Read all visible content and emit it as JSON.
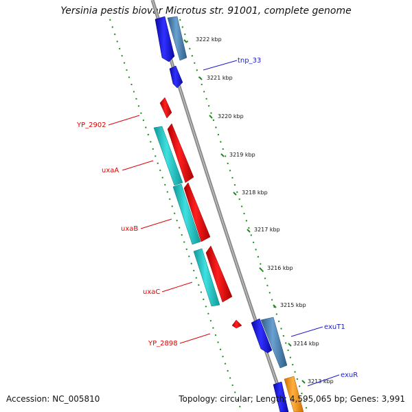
{
  "title": "Yersinia pestis biovar Microtus str. 91001, complete genome",
  "accession": "Accession: NC_005810",
  "summary": "Topology: circular; Length: 4,595,065 bp; Genes: 3,991",
  "kbp_ticks": [
    "3222 kbp",
    "3221 kbp",
    "3220 kbp",
    "3219 kbp",
    "3218 kbp",
    "3217 kbp",
    "3216 kbp",
    "3215 kbp",
    "3214 kbp",
    "3213 kbp"
  ],
  "gene_labels": {
    "tnp_33": "tnp_33",
    "YP_2902": "YP_2902",
    "uxaA": "uxaA",
    "uxaB": "uxaB",
    "uxaC": "uxaC",
    "YP_2898": "YP_2898",
    "exuT1": "exuT1",
    "exuR": "exuR"
  },
  "colors": {
    "backbone": "#888888",
    "forward_cds": "#2020e0",
    "reverse_cds": "#ff1010",
    "rrna_track": "#20c8c8",
    "tick_green": "#1a8a1a",
    "misc_steel": "#4682b4",
    "misc_orange": "#ff9a10"
  }
}
